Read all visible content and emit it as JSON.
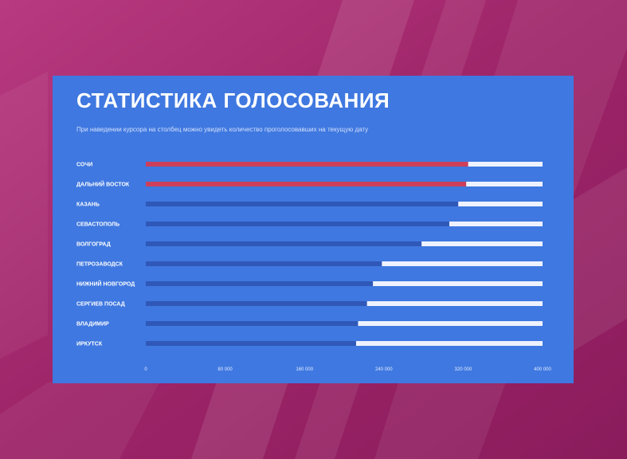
{
  "header": {
    "title": "СТАТИСТИКА ГОЛОСОВАНИЯ",
    "subtitle": "При наведении курсора на столбец можно увидеть количество проголосовавших на текущую дату"
  },
  "colors": {
    "panel": "#3f78e0",
    "track": "#eef2ff",
    "highlight": "#cc3f5a",
    "normal": "#2f58b8",
    "background": "#a5286e"
  },
  "chart_data": {
    "type": "bar",
    "orientation": "horizontal",
    "categories": [
      "СОЧИ",
      "ДАЛЬНИЙ ВОСТОК",
      "КАЗАНЬ",
      "СЕВАСТОПОЛЬ",
      "ВОЛГОГРАД",
      "ПЕТРОЗАВОДСК",
      "НИЖНИЙ НОВГОРОД",
      "СЕРГИЕВ ПОСАД",
      "ВЛАДИМИР",
      "ИРКУТСК"
    ],
    "values": [
      325000,
      323000,
      315000,
      306000,
      278000,
      238000,
      229000,
      223000,
      214000,
      212000
    ],
    "highlighted": [
      true,
      true,
      false,
      false,
      false,
      false,
      false,
      false,
      false,
      false
    ],
    "xlim": [
      0,
      400000
    ],
    "xticks": [
      0,
      80000,
      160000,
      240000,
      320000,
      400000
    ],
    "xtick_labels": [
      "0",
      "80 000",
      "160 000",
      "240 000",
      "320 000",
      "400 000"
    ],
    "grid": false,
    "legend": "none"
  }
}
